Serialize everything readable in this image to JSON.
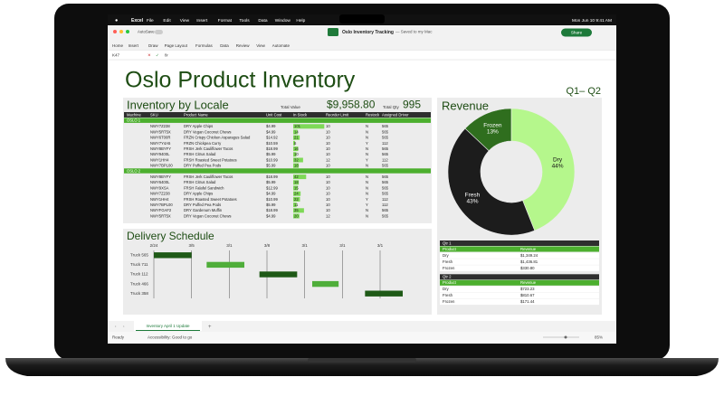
{
  "menubar": {
    "app": "Excel",
    "items": [
      "File",
      "Edit",
      "View",
      "Insert",
      "Format",
      "Tools",
      "Data",
      "Window",
      "Help"
    ],
    "clock": "Mon Jun 10  9:41 AM"
  },
  "titlebar": {
    "autosave": "AutoSave",
    "document": "Oslo Inventory Tracking",
    "saved": "— Saved to my Mac",
    "share": "Share"
  },
  "ribbon": {
    "tabs": [
      "Home",
      "Insert",
      "Draw",
      "Page Layout",
      "Formulas",
      "Data",
      "Review",
      "View",
      "Automate"
    ]
  },
  "formula_bar": {
    "name_box": "K47",
    "fx": "fx"
  },
  "sheet": {
    "title": "Oslo Product Inventory",
    "period": "Q1– Q2"
  },
  "inventory": {
    "title": "Inventory by Locale",
    "total_value_label": "Total Value",
    "total_value": "$9,958.80",
    "total_qty_label": "Total Qty",
    "total_qty": "995",
    "columns": [
      "Machine",
      "SKU",
      "Product Name",
      "Unit Cost",
      "In Stock",
      "Reorder Limit",
      "Restock",
      "Assigned Driver"
    ],
    "groups": [
      {
        "name": "OSLO 1",
        "rows": [
          [
            "NWY7Z238",
            "DRY Apple Chips",
            "$4.99",
            101,
            "10",
            "N",
            "565"
          ],
          [
            "NWY5RT5X",
            "DRY Vegan Coconut Chews",
            "$4.99",
            14,
            "10",
            "N",
            "565"
          ],
          [
            "NWY6T00R",
            "FRZN Crispy Chicken Asparagus Salad",
            "$14.92",
            21,
            "10",
            "N",
            "565"
          ],
          [
            "NWY7Y4A5",
            "FRZN Chickpea Curry",
            "$10.59",
            6,
            "10",
            "Y",
            "112"
          ],
          [
            "NWY8BYFY",
            "FRSH Jerk Cauliflower Tacos",
            "$18.99",
            16,
            "10",
            "N",
            "565"
          ],
          [
            "NWY9400L",
            "FRSH Citrus Salad",
            "$5.99",
            10,
            "10",
            "N",
            "565"
          ],
          [
            "NWY1HH4",
            "FRSH Roasted Sweet Potatoes",
            "$10.99",
            32,
            "12",
            "Y",
            "112"
          ],
          [
            "NWY7BPL00",
            "DRY Puffed Pea Pods",
            "$5.99",
            18,
            "10",
            "N",
            "565"
          ]
        ]
      },
      {
        "name": "OSLO 2",
        "rows": [
          [
            "NWY8BYFY",
            "FRSH Jerk Cauliflower Tacos",
            "$18.99",
            42,
            "10",
            "N",
            "565"
          ],
          [
            "NWY6400L",
            "FRSH Citrus Salad",
            "$5.99",
            18,
            "10",
            "N",
            "565"
          ],
          [
            "NWY9XSA",
            "FRSH Falafel Sandwich",
            "$12.99",
            15,
            "10",
            "N",
            "565"
          ],
          [
            "NWY7Z238",
            "DRY Apple Chips",
            "$4.99",
            24,
            "10",
            "N",
            "565"
          ],
          [
            "NWY1HH4",
            "FRSH Roasted Sweet Potatoes",
            "$10.99",
            22,
            "10",
            "Y",
            "112"
          ],
          [
            "NWY7BPL00",
            "DRY Puffed Pea Pods",
            "$5.99",
            11,
            "10",
            "Y",
            "112"
          ],
          [
            "NWYFGAF2",
            "DRY Gardenum Muffin",
            "$18.99",
            35,
            "10",
            "N",
            "565"
          ],
          [
            "NWY5RT5X",
            "DRY Vegan Coconut Chews",
            "$4.99",
            20,
            "12",
            "N",
            "565"
          ]
        ]
      }
    ]
  },
  "revenue_table": {
    "groups": [
      {
        "name": "Qtr 1",
        "columns": [
          "Product",
          "Revenue"
        ],
        "rows": [
          [
            "Dry",
            "$1,349.24"
          ],
          [
            "Fresh",
            "$1,436.81"
          ],
          [
            "Frozen",
            "$330.80"
          ]
        ]
      },
      {
        "name": "Qtr 2",
        "columns": [
          "Product",
          "Revenue"
        ],
        "rows": [
          [
            "Dry",
            "$723.23"
          ],
          [
            "Fresh",
            "$810.67"
          ],
          [
            "Frozen",
            "$171.44"
          ]
        ]
      }
    ]
  },
  "chart_data": [
    {
      "type": "donut",
      "title": "Revenue",
      "categories": [
        "Dry",
        "Fresh",
        "Frozen"
      ],
      "values": [
        44,
        43,
        13
      ],
      "value_labels": [
        "44%",
        "43%",
        "13%"
      ],
      "colors": [
        "#b5f78c",
        "#1c1c1c",
        "#2f6e1e"
      ]
    },
    {
      "type": "gantt",
      "title": "Delivery Schedule",
      "categories": [
        "Truck 565",
        "Truck 711",
        "Truck 112",
        "Truck 466",
        "Truck 358"
      ],
      "start": [
        0,
        1.4,
        2.8,
        4.2,
        5.6
      ],
      "end": [
        1,
        2.4,
        3.8,
        4.9,
        6.6
      ],
      "colors": [
        "#1f5a17",
        "#4fae3a",
        "#1f5a17",
        "#4fae3a",
        "#1f5a17"
      ],
      "xlim": [
        0,
        7.2
      ],
      "xticks": [
        {
          "value": 0,
          "label": "2/24"
        },
        {
          "value": 1,
          "label": "3/5"
        },
        {
          "value": 2,
          "label": "3/1"
        },
        {
          "value": 3,
          "label": "3/8"
        },
        {
          "value": 4,
          "label": "3/1"
        },
        {
          "value": 5,
          "label": "3/1"
        },
        {
          "value": 6,
          "label": "3/1"
        }
      ],
      "grid": true
    }
  ],
  "sheet_tab": "Inventory April 1 Update",
  "status": {
    "ready": "Ready",
    "accessibility": "Accessibility: Good to go",
    "zoom": "85%"
  }
}
